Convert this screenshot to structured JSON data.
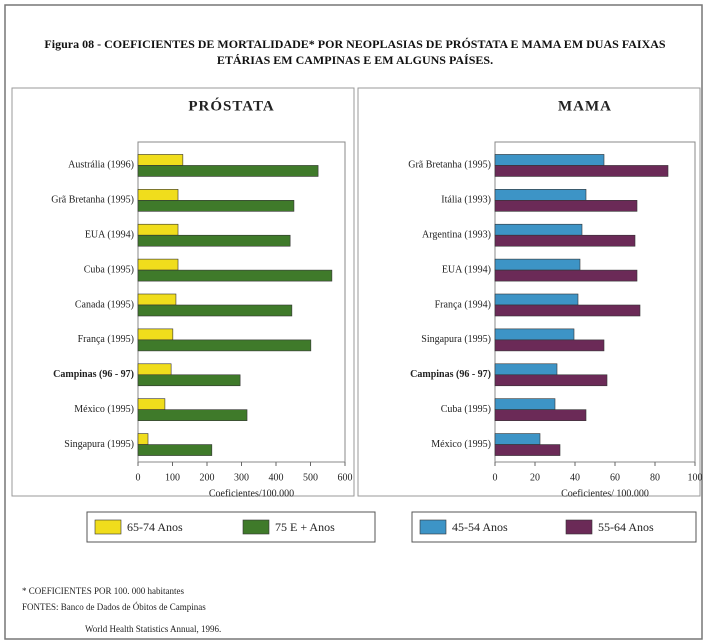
{
  "title": "Figura 08 - COEFICIENTES DE MORTALIDADE* POR NEOPLASIAS DE PRÓSTATA E MAMA EM DUAS FAIXAS ETÁRIAS EM CAMPINAS E EM ALGUNS PAÍSES.",
  "chart_data": [
    {
      "type": "bar",
      "orientation": "horizontal",
      "title": "PRÓSTATA",
      "x_label": "Coeficientes/100.000",
      "categories": [
        "Austrália (1996)",
        "Grã Bretanha (1995)",
        "EUA (1994)",
        "Cuba (1995)",
        "Canada (1995)",
        "França (1995)",
        "Campinas (96 - 97)",
        "México (1995)",
        "Singapura (1995)"
      ],
      "series": [
        {
          "name": "65-74 Anos",
          "color": "#f0dd1c",
          "values": [
            130,
            116,
            116,
            116,
            110,
            101,
            96,
            78,
            29
          ]
        },
        {
          "name": "75 E + Anos",
          "color": "#3f7a2a",
          "values": [
            522,
            452,
            441,
            562,
            446,
            501,
            296,
            316,
            214
          ]
        }
      ],
      "xlim": [
        0,
        600
      ],
      "xticks": [
        0,
        100,
        200,
        300,
        400,
        500,
        600
      ]
    },
    {
      "type": "bar",
      "orientation": "horizontal",
      "title": "MAMA",
      "x_label": "Coeficientes/ 100.000",
      "categories": [
        "Grã Bretanha (1995)",
        "Itália (1993)",
        "Argentina (1993)",
        "EUA (1994)",
        "França (1994)",
        "Singapura (1995)",
        "Campinas (96 - 97)",
        "Cuba (1995)",
        "México (1995)"
      ],
      "series": [
        {
          "name": "45-54 Anos",
          "color": "#3d94c6",
          "values": [
            54.5,
            45.5,
            43.5,
            42.5,
            41.5,
            39.5,
            31,
            30,
            22.5
          ]
        },
        {
          "name": "55-64 Anos",
          "color": "#6b2a57",
          "values": [
            86.5,
            71,
            70,
            71,
            72.5,
            54.5,
            56,
            45.5,
            32.5
          ]
        }
      ],
      "xlim": [
        0,
        100
      ],
      "xticks": [
        0,
        20,
        40,
        60,
        80,
        100
      ]
    }
  ],
  "notes": [
    "* COEFICIENTES POR 100. 000 habitantes",
    "FONTES: Banco de Dados de Óbitos de Campinas",
    "World Health Statistics Annual, 1996."
  ]
}
